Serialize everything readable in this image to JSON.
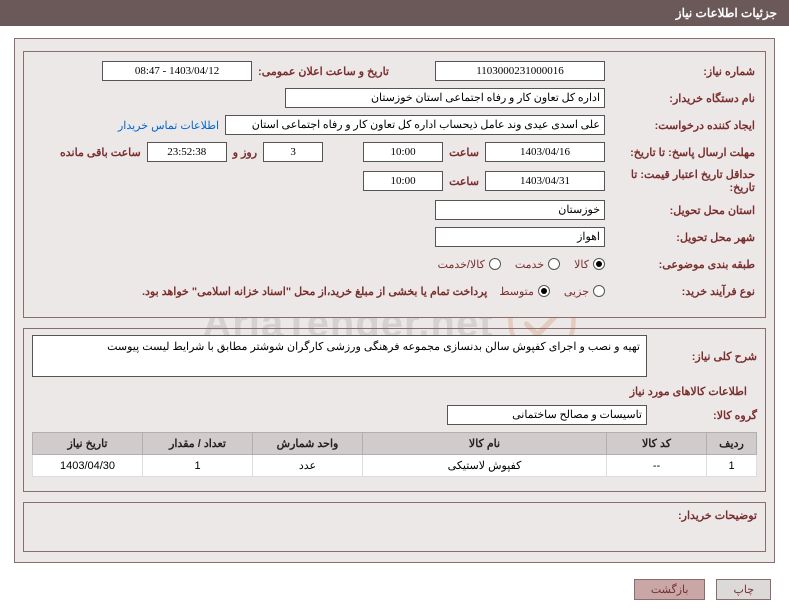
{
  "titleBar": "جزئیات اطلاعات نیاز",
  "labels": {
    "reqNo": "شماره نیاز:",
    "announce": "تاریخ و ساعت اعلان عمومی:",
    "buyerOrg": "نام دستگاه خریدار:",
    "requester": "ایجاد کننده درخواست:",
    "deadlineReply": "مهلت ارسال پاسخ: تا تاریخ:",
    "deadlineValid": "حداقل تاریخ اعتبار قیمت: تا تاریخ:",
    "hour": "ساعت",
    "daysAnd": "روز و",
    "remain": "ساعت باقی مانده",
    "province": "استان محل تحویل:",
    "city": "شهر محل تحویل:",
    "subjectCat": "طبقه بندی موضوعی:",
    "buyType": "نوع فرآیند خرید:",
    "descTitle": "شرح کلی نیاز:",
    "itemsTitle": "اطلاعات کالاهای مورد نیاز",
    "goodsGroup": "گروه کالا:",
    "buyerNotes": "توضیحات خریدار:",
    "contactLink": "اطلاعات تماس خریدار"
  },
  "values": {
    "reqNo": "1103000231000016",
    "announce": "1403/04/12 - 08:47",
    "buyerOrg": "اداره کل تعاون  کار و رفاه اجتماعی استان خوزستان",
    "requester": "علی اسدی عیدی وند عامل ذیحساب اداره کل تعاون  کار و رفاه اجتماعی استان",
    "deadlineDate": "1403/04/16",
    "deadlineTime": "10:00",
    "remainDays": "3",
    "remainClock": "23:52:38",
    "validDate": "1403/04/31",
    "validTime": "10:00",
    "province": "خوزستان",
    "city": "اهواز",
    "goodsGroup": "تاسیسات و مصالح ساختمانی",
    "desc": "تهیه و نصب و اجرای کفپوش سالن بدنسازی مجموعه فرهنگی ورزشی کارگران شوشتر مطابق با شرایط لیست پیوست"
  },
  "radios": {
    "cat": [
      {
        "label": "کالا",
        "selected": true
      },
      {
        "label": "خدمت",
        "selected": false
      },
      {
        "label": "کالا/خدمت",
        "selected": false
      }
    ],
    "type": [
      {
        "label": "جزیی",
        "selected": false
      },
      {
        "label": "متوسط",
        "selected": true
      }
    ]
  },
  "note": "پرداخت تمام یا بخشی از مبلغ خرید،از محل \"اسناد خزانه اسلامی\" خواهد بود.",
  "table": {
    "headers": {
      "row": "ردیف",
      "code": "کد کالا",
      "name": "نام کالا",
      "unit": "واحد شمارش",
      "qty": "تعداد / مقدار",
      "date": "تاریخ نیاز"
    },
    "rows": [
      {
        "row": "1",
        "code": "--",
        "name": "کفپوش لاستیکی",
        "unit": "عدد",
        "qty": "1",
        "date": "1403/04/30"
      }
    ]
  },
  "buttons": {
    "print": "چاپ",
    "back": "بازگشت"
  },
  "colors": {
    "bar": "#6b5858",
    "label": "#7a2e2e",
    "border": "#8a6d6d"
  },
  "watermark": "AriaTender.net"
}
